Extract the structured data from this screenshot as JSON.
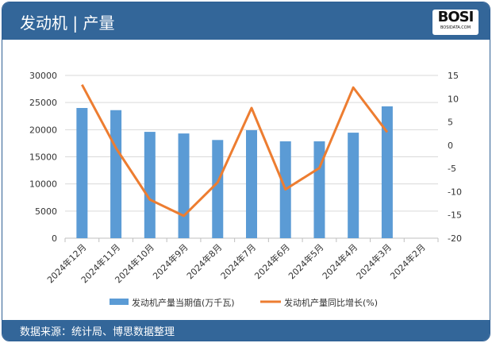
{
  "header": {
    "title": "发动机 | 产量",
    "logo_text": "BOSI",
    "logo_sub": "BOSIDATA.COM"
  },
  "footer": {
    "source": "数据来源：统计局、博思数据整理"
  },
  "colors": {
    "bar": "#5b9bd5",
    "line": "#ed7d31",
    "header": "#336699"
  },
  "chart_data": {
    "type": "bar+line",
    "categories": [
      "2024年12月",
      "2024年11月",
      "2024年10月",
      "2024年9月",
      "2024年8月",
      "2024年7月",
      "2024年6月",
      "2024年5月",
      "2024年4月",
      "2024年3月",
      "2024年2月"
    ],
    "series": [
      {
        "name": "发动机产量当期值(万千瓦)",
        "type": "bar",
        "axis": "left",
        "values": [
          24000,
          23600,
          19600,
          19300,
          18100,
          19900,
          17850,
          17850,
          19450,
          24300,
          null
        ]
      },
      {
        "name": "发动机产量同比增长(%)",
        "type": "line",
        "axis": "right",
        "values": [
          13.0,
          -0.6,
          -11.7,
          -15.2,
          -8.0,
          8.0,
          -9.5,
          -4.9,
          12.4,
          2.8,
          null
        ]
      }
    ],
    "left_ylim": [
      0,
      30000
    ],
    "left_ticks": [
      0,
      5000,
      10000,
      15000,
      20000,
      25000,
      30000
    ],
    "right_ylim": [
      -20,
      15
    ],
    "right_ticks": [
      -20,
      -15,
      -10,
      -5,
      0,
      5,
      10,
      15
    ],
    "grid": true,
    "legend": "bottom"
  }
}
